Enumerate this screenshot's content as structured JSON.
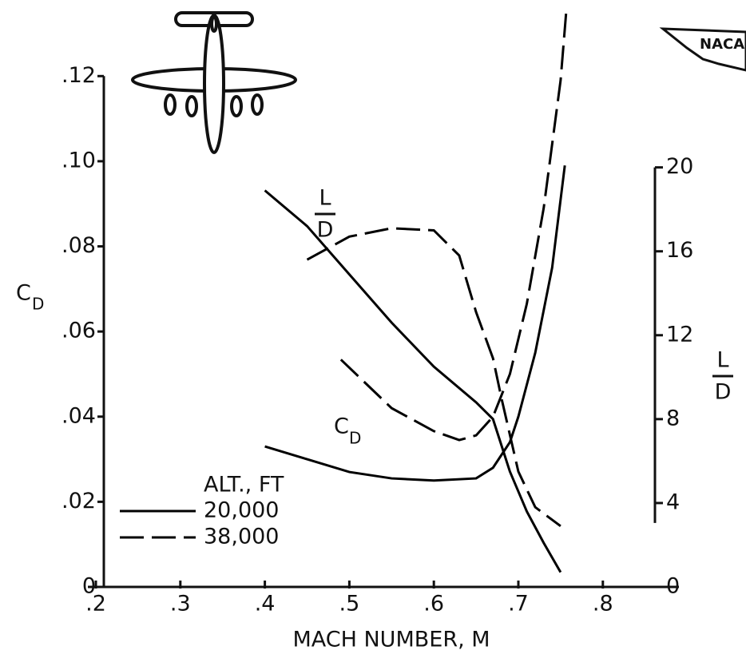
{
  "logo": "NACA",
  "chart_data": {
    "type": "line",
    "xlabel": "MACH  NUMBER, M",
    "ylabel": "C",
    "ylabel_sub": "D",
    "y2label_num": "L",
    "y2label_den": "D",
    "annotation_cd": "C",
    "annotation_cd_sub": "D",
    "annotation_ld_num": "L",
    "annotation_ld_den": "D",
    "legend_title": "ALT., FT",
    "legend": "lower left",
    "xlim": [
      0.2,
      0.89
    ],
    "xticks": [
      {
        "value": 0.2,
        "label": ".2"
      },
      {
        "value": 0.3,
        "label": ".3"
      },
      {
        "value": 0.4,
        "label": ".4"
      },
      {
        "value": 0.5,
        "label": ".5"
      },
      {
        "value": 0.6,
        "label": ".6"
      },
      {
        "value": 0.7,
        "label": ".7"
      },
      {
        "value": 0.8,
        "label": ".8"
      }
    ],
    "ylim": [
      0,
      0.136
    ],
    "yticks": [
      0,
      {
        "value": 0.02,
        "label": ".02"
      },
      {
        "value": 0.04,
        "label": ".04"
      },
      {
        "value": 0.06,
        "label": ".06"
      },
      {
        "value": 0.08,
        "label": ".08"
      },
      {
        "value": 0.1,
        "label": ".10"
      },
      {
        "value": 0.12,
        "label": ".12"
      }
    ],
    "y2lim": [
      0,
      27.6
    ],
    "y2ticks": [
      0,
      4,
      8,
      12,
      16,
      20
    ],
    "series": [
      {
        "name": "20,000",
        "style": "solid",
        "color": "#000000",
        "cd_x": [
          0.4,
          0.45,
          0.5,
          0.55,
          0.6,
          0.65,
          0.67,
          0.69,
          0.7,
          0.72,
          0.74,
          0.755
        ],
        "cd": [
          0.033,
          0.03,
          0.027,
          0.0255,
          0.025,
          0.0255,
          0.028,
          0.034,
          0.04,
          0.055,
          0.075,
          0.099
        ],
        "ld_x": [
          0.4,
          0.45,
          0.5,
          0.55,
          0.6,
          0.65,
          0.67,
          0.69,
          0.71,
          0.73,
          0.75
        ],
        "ld": [
          18.9,
          17.2,
          14.9,
          12.6,
          10.5,
          8.8,
          8.0,
          5.5,
          3.6,
          2.1,
          0.7
        ]
      },
      {
        "name": "38,000",
        "style": "dashed",
        "color": "#000000",
        "cd_x": [
          0.49,
          0.55,
          0.6,
          0.63,
          0.65,
          0.67,
          0.69,
          0.71,
          0.73,
          0.75,
          0.757
        ],
        "cd": [
          0.0534,
          0.042,
          0.0366,
          0.0345,
          0.0356,
          0.04,
          0.05,
          0.0665,
          0.089,
          0.119,
          0.136
        ],
        "ld_x": [
          0.45,
          0.5,
          0.55,
          0.6,
          0.63,
          0.65,
          0.67,
          0.68,
          0.7,
          0.72,
          0.75
        ],
        "ld": [
          15.6,
          16.7,
          17.1,
          17.0,
          15.8,
          13.1,
          10.9,
          9.0,
          5.5,
          3.8,
          2.9
        ]
      }
    ]
  }
}
